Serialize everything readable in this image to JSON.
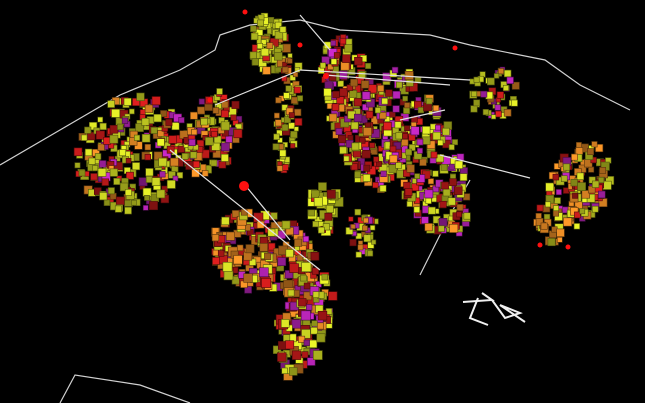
{
  "viewport": {
    "background": "#000000",
    "outline_color": "#d8d8d8",
    "voxel_colors": {
      "yellow": "#b8c020",
      "red": "#b01818",
      "orange": "#c87820",
      "magenta": "#a020a0"
    },
    "marker_color": "#ff1010",
    "axis_indicator_icon": "xyz-axes-icon"
  }
}
